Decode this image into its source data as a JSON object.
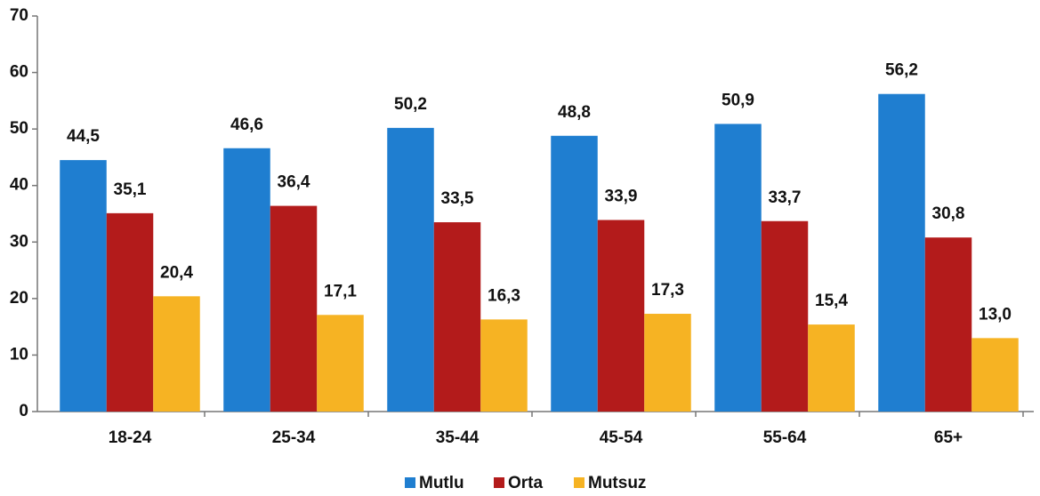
{
  "chart_data": {
    "type": "bar",
    "categories": [
      "18-24",
      "25-34",
      "35-44",
      "45-54",
      "55-64",
      "65+"
    ],
    "series": [
      {
        "name": "Mutlu",
        "color": "#1f7ed0",
        "values": [
          44.5,
          46.6,
          50.2,
          48.8,
          50.9,
          56.2
        ],
        "value_labels": [
          "44,5",
          "46,6",
          "50,2",
          "48,8",
          "50,9",
          "56,2"
        ]
      },
      {
        "name": "Orta",
        "color": "#b31b1b",
        "values": [
          35.1,
          36.4,
          33.5,
          33.9,
          33.7,
          30.8
        ],
        "value_labels": [
          "35,1",
          "36,4",
          "33,5",
          "33,9",
          "33,7",
          "30,8"
        ]
      },
      {
        "name": "Mutsuz",
        "color": "#f6b323",
        "values": [
          20.4,
          17.1,
          16.3,
          17.3,
          15.4,
          13.0
        ],
        "value_labels": [
          "20,4",
          "17,1",
          "16,3",
          "17,3",
          "15,4",
          "13,0"
        ]
      }
    ],
    "ylim": [
      0,
      70
    ],
    "yticks": [
      0,
      10,
      20,
      30,
      40,
      50,
      60,
      70
    ],
    "grid": false,
    "legend": "bottom"
  }
}
